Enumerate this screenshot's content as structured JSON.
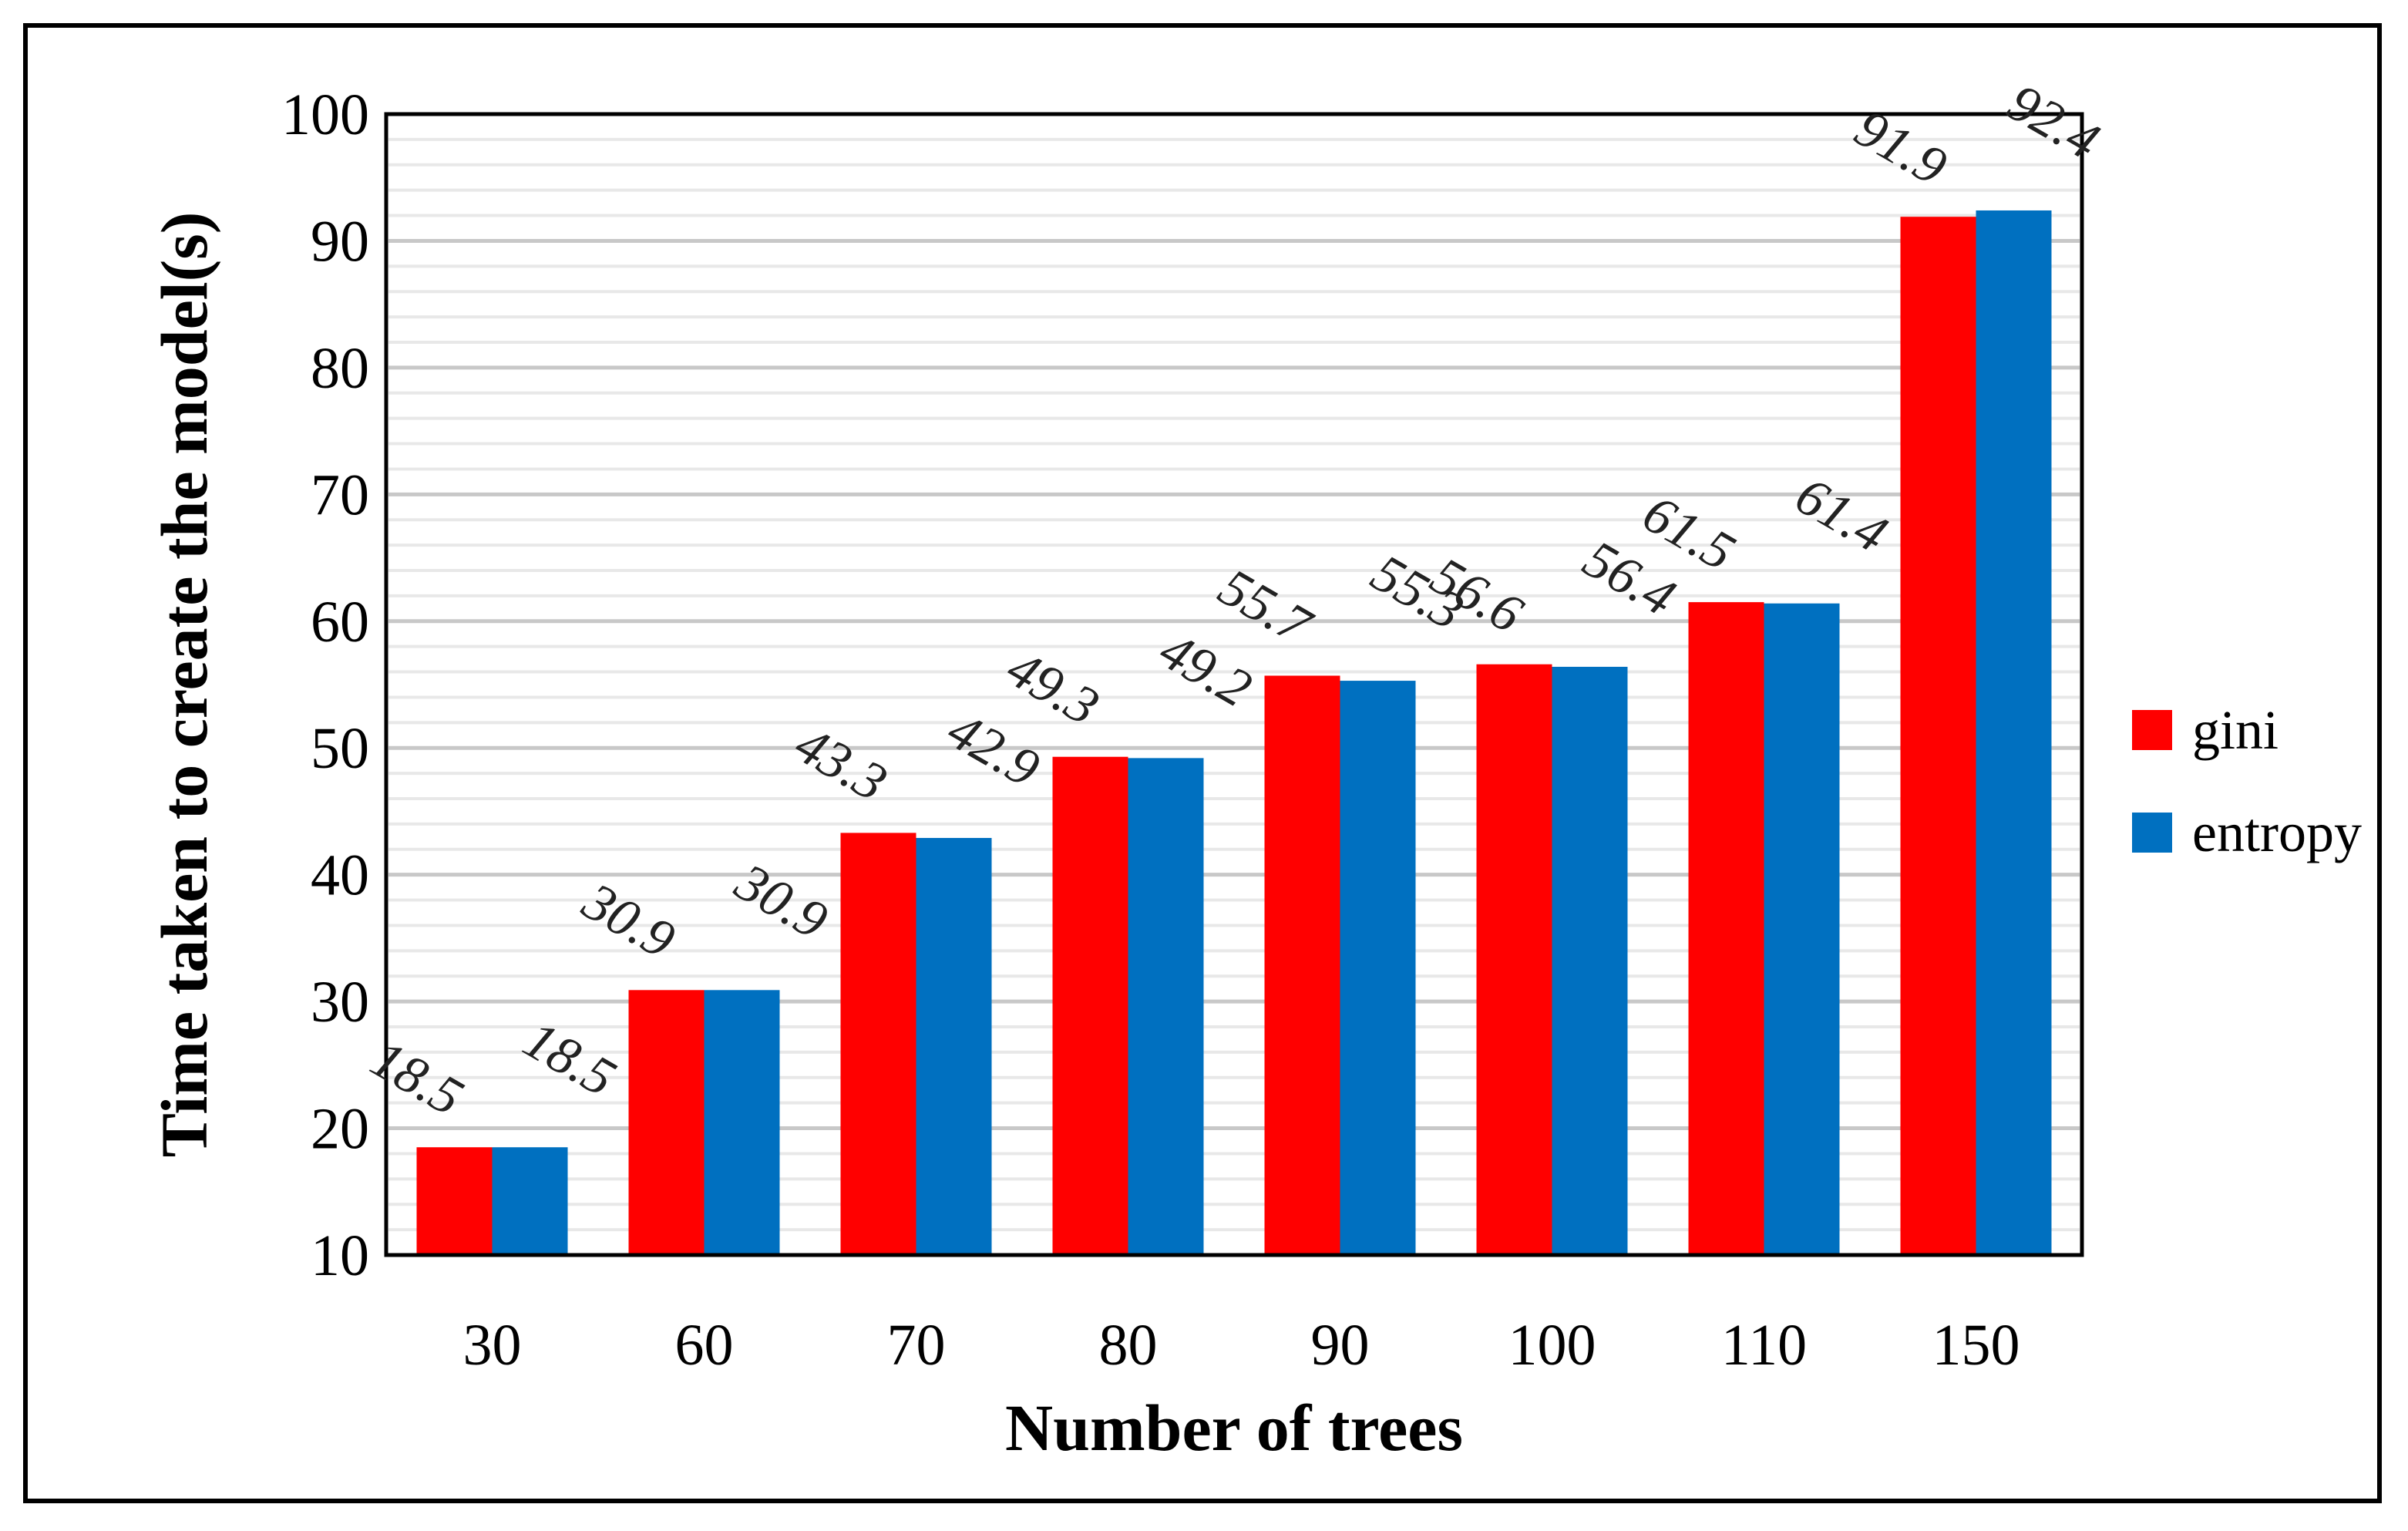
{
  "chart_data": {
    "type": "bar",
    "title": "",
    "xlabel": "Number of trees",
    "ylabel": "Time taken to create the model(s)",
    "categories": [
      "30",
      "60",
      "70",
      "80",
      "90",
      "100",
      "110",
      "150"
    ],
    "series": [
      {
        "name": "gini",
        "color": "#ff0000",
        "values": [
          18.5,
          30.9,
          43.3,
          49.3,
          55.7,
          56.6,
          61.5,
          91.9
        ]
      },
      {
        "name": "entropy",
        "color": "#0070c0",
        "values": [
          18.5,
          30.9,
          42.9,
          49.2,
          55.3,
          56.4,
          61.4,
          92.4
        ]
      }
    ],
    "data_labels": [
      [
        "18.5",
        "30.9",
        "43.3",
        "49.3",
        "55.7",
        "56.6",
        "61.5",
        "91.9"
      ],
      [
        "18.5",
        "30.9",
        "42.9",
        "49.2",
        "55.3",
        "56.4",
        "61.4",
        "92.4"
      ]
    ],
    "ylim": [
      10,
      100
    ],
    "yticks": [
      "10",
      "20",
      "30",
      "40",
      "50",
      "60",
      "70",
      "80",
      "90",
      "100"
    ],
    "grid": true,
    "legend_position": "right"
  }
}
